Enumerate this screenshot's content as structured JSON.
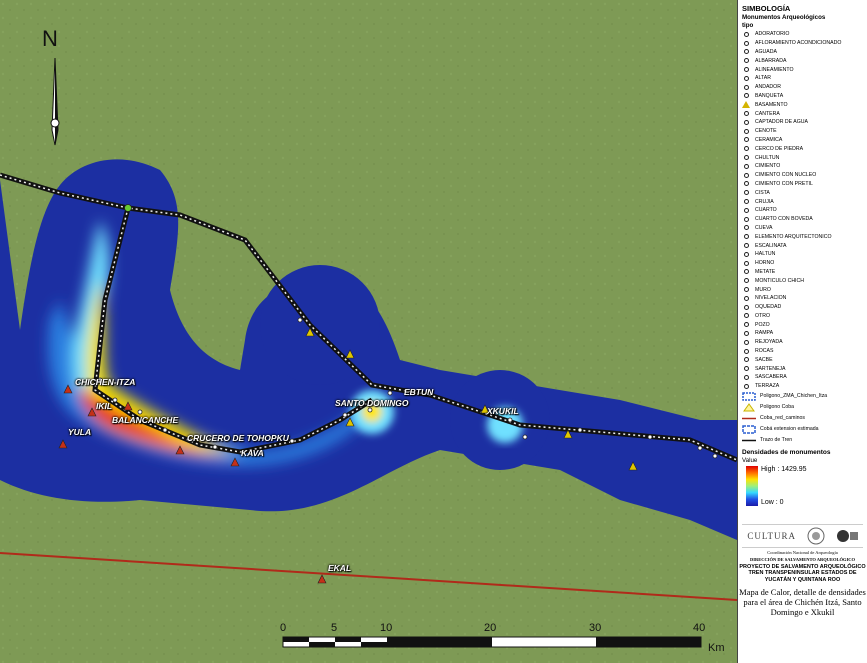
{
  "map": {
    "north": "N",
    "places": [
      {
        "id": "chichen-itza",
        "name": "CHICHEN-ITZA"
      },
      {
        "id": "ikil",
        "name": "IKIL"
      },
      {
        "id": "balancanche",
        "name": "BALANCANCHE"
      },
      {
        "id": "yula",
        "name": "YULA"
      },
      {
        "id": "crucero",
        "name": "CRUCERO DE TOHOPKU"
      },
      {
        "id": "kava",
        "name": "KAVA"
      },
      {
        "id": "santo-domingo",
        "name": "SANTO DOMINGO"
      },
      {
        "id": "ebtun",
        "name": "EBTUN"
      },
      {
        "id": "xkukil",
        "name": "XKUKIL"
      },
      {
        "id": "ekal",
        "name": "EKAL"
      }
    ],
    "scale": {
      "ticks": [
        "0",
        "5",
        "10",
        "20",
        "30",
        "40"
      ],
      "unit": "Km"
    }
  },
  "legend": {
    "title": "SIMBOLOGÍA",
    "group": "Monumentos Arqueológicos",
    "field": "tipo",
    "items": [
      "ADORATORIO",
      "AFLORAMIENTO ACONDICIONADO",
      "AGUADA",
      "ALBARRADA",
      "ALINEAMIENTO",
      "ALTAR",
      "ANDADOR",
      "BANQUETA",
      "BASAMENTO",
      "CANTERA",
      "CAPTADOR DE AGUA",
      "CENOTE",
      "CERAMICA",
      "CERCO DE PIEDRA",
      "CHULTUN",
      "CIMIENTO",
      "CIMIENTO CON NUCLEO",
      "CIMIENTO CON PRETIL",
      "CISTA",
      "CRUJIA",
      "CUARTO",
      "CUARTO CON BOVEDA",
      "CUEVA",
      "ELEMENTO ARQUITECTONICO",
      "ESCALINATA",
      "HALTUN",
      "HORNO",
      "METATE",
      "MONTICULO CHICH",
      "MURO",
      "NIVELACION",
      "OQUEDAD",
      "OTRO",
      "POZO",
      "RAMPA",
      "REJOYADA",
      "ROCAS",
      "SACBE",
      "SARTENEJA",
      "SASCABERA",
      "TERRAZA"
    ],
    "extras": [
      "Poligono_ZMA_Chichen_Itza",
      "Poligono Coba",
      "Coba_red_caminos",
      "Cobá extension estimada",
      "Trazo de Tren"
    ],
    "density_title": "Densidades de monumentos",
    "value_label": "Value",
    "high": "High : 1429.95",
    "low": "Low : 0",
    "logo_text": "CULTURA",
    "credit_1": "Coordinación Nacional de Arqueología",
    "credit_2": "DIRECCIÓN DE SALVAMENTO ARQUEOLÓGICO",
    "project": "PROYECTO DE SALVAMENTO ARQUEOLÓGICO TREN TRANSPENINSULAR ESTADOS DE YUCATÁN Y QUINTANA ROO",
    "map_title": "Mapa de Calor, detalle de densidades para el área de Chichén Itzá, Santo Domingo e Xkukil"
  }
}
